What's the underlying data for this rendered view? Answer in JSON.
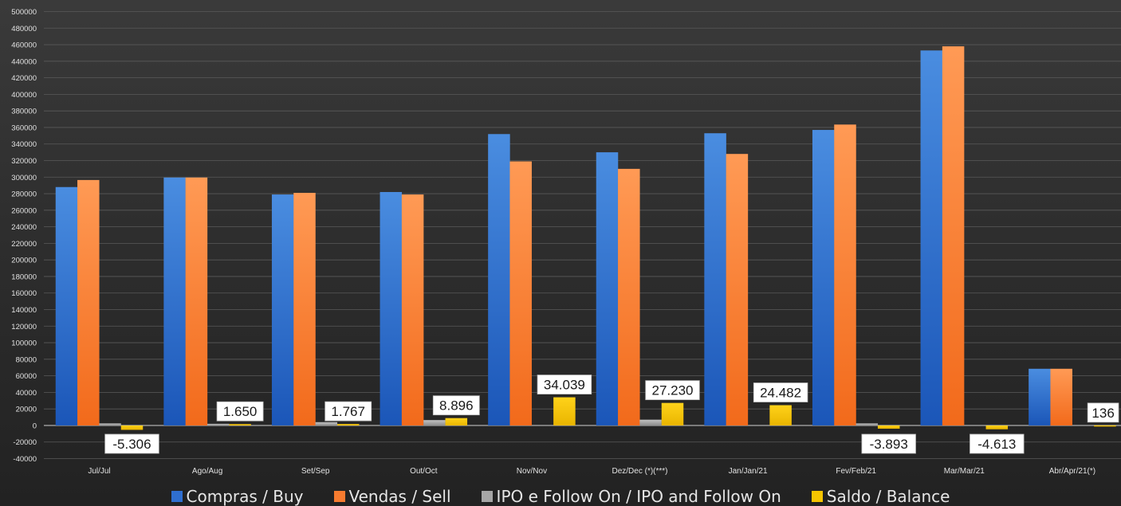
{
  "chart_data": {
    "type": "bar",
    "categories": [
      "Jul/Jul",
      "Ago/Aug",
      "Set/Sep",
      "Out/Oct",
      "Nov/Nov",
      "Dez/Dec (*)(***)",
      "Jan/Jan/21",
      "Fev/Feb/21",
      "Mar/Mar/21",
      "Abr/Apr/21(*)"
    ],
    "series": [
      {
        "name": "Compras / Buy",
        "color": "#2f6fd0",
        "values": [
          288000,
          299500,
          279000,
          282000,
          352000,
          330000,
          353000,
          357000,
          453000,
          68500
        ]
      },
      {
        "name": "Vendas / Sell",
        "color": "#f77b2f",
        "values": [
          296500,
          299500,
          281000,
          279000,
          319000,
          310000,
          328000,
          363500,
          458000,
          68500
        ]
      },
      {
        "name": "IPO e Follow On / IPO and Follow On",
        "color": "#a6a6a6",
        "values": [
          2500,
          2000,
          4000,
          6500,
          0,
          7000,
          0,
          2500,
          0,
          0
        ]
      },
      {
        "name": "Saldo / Balance",
        "color": "#f5c400",
        "values": [
          -5306,
          1650,
          1767,
          8896,
          34039,
          27230,
          24482,
          -3893,
          -4613,
          136
        ]
      }
    ],
    "data_labels": [
      "-5.306",
      "1.650",
      "1.767",
      "8.896",
      "34.039",
      "27.230",
      "24.482",
      "-3.893",
      "-4.613",
      "136"
    ],
    "yticks": [
      "500000",
      "480000",
      "460000",
      "440000",
      "420000",
      "400000",
      "380000",
      "360000",
      "340000",
      "320000",
      "300000",
      "280000",
      "260000",
      "240000",
      "220000",
      "200000",
      "180000",
      "160000",
      "140000",
      "120000",
      "100000",
      "80000",
      "60000",
      "40000",
      "20000",
      "0",
      "-20000",
      "-40000"
    ],
    "ylim": [
      -40000,
      500000
    ],
    "grid": true,
    "legend": "bottom"
  }
}
